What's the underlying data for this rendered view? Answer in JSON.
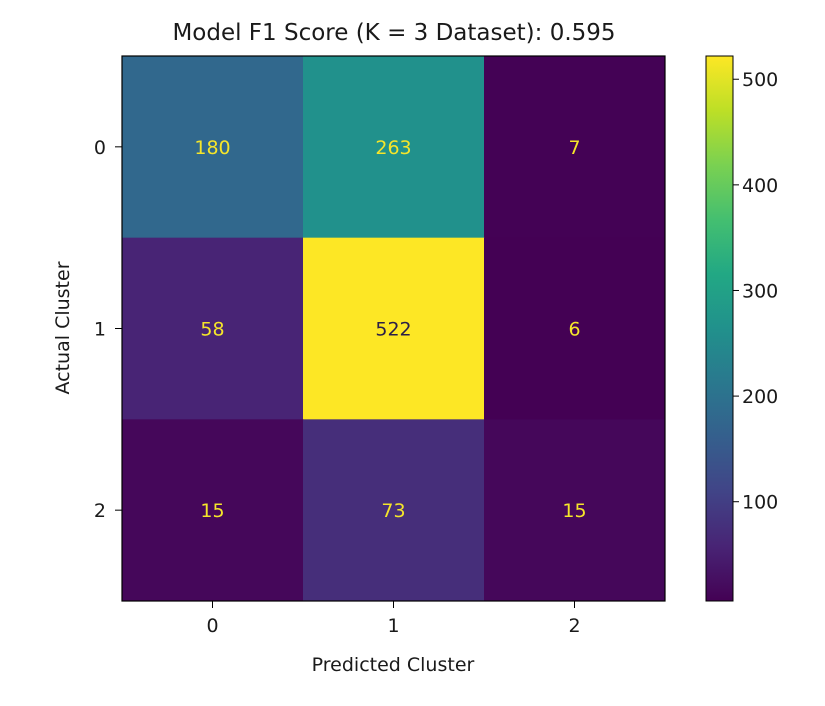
{
  "chart_data": {
    "type": "heatmap",
    "title": "Model F1 Score (K = 3 Dataset): 0.595",
    "xlabel": "Predicted Cluster",
    "ylabel": "Actual Cluster",
    "x_categories": [
      "0",
      "1",
      "2"
    ],
    "y_categories": [
      "0",
      "1",
      "2"
    ],
    "values": [
      [
        180,
        263,
        7
      ],
      [
        58,
        522,
        6
      ],
      [
        15,
        73,
        15
      ]
    ],
    "colormap": "viridis",
    "color_range": [
      6,
      522
    ],
    "colorbar_ticks": [
      100,
      200,
      300,
      400,
      500
    ],
    "colorbar_tick_labels": [
      "100",
      "200",
      "300",
      "400",
      "500"
    ],
    "annotation_color_light": "#f5e52a",
    "annotation_color_dark": "#2a1e48"
  }
}
